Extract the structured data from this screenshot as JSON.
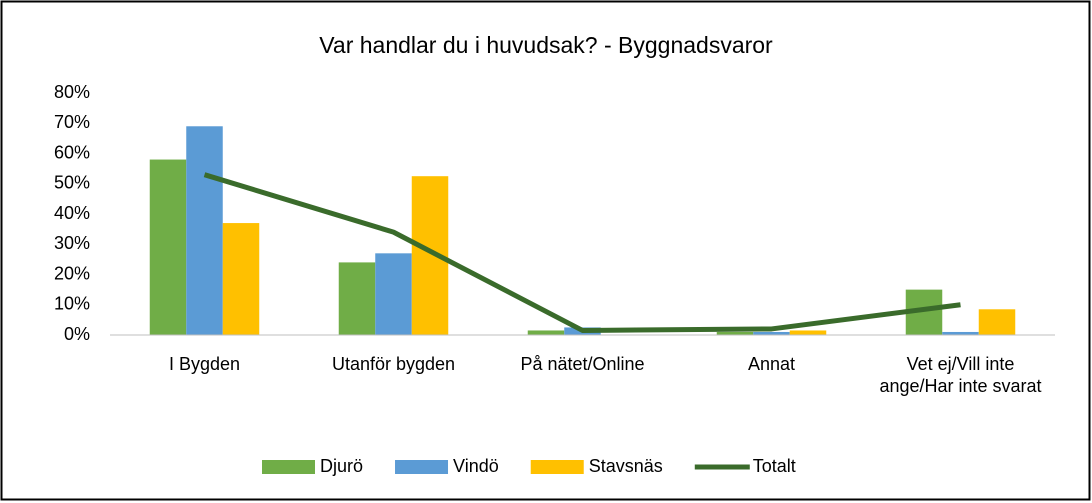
{
  "chart_data": {
    "type": "bar-line",
    "title": "Var handlar du i huvudsak? - Byggnadsvaror",
    "categories": [
      "I Bygden",
      "Utanför bygden",
      "På nätet/Online",
      "Annat",
      "Vet ej/Vill inte ange/Har inte svarat"
    ],
    "series": [
      {
        "name": "Djurö",
        "type": "bar",
        "color": "#70ad47",
        "values": [
          58,
          24,
          1.5,
          1,
          15
        ]
      },
      {
        "name": "Vindö",
        "type": "bar",
        "color": "#5b9bd5",
        "values": [
          69,
          27,
          2.5,
          1,
          1
        ]
      },
      {
        "name": "Stavsnäs",
        "type": "bar",
        "color": "#ffc000",
        "values": [
          37,
          52.5,
          0,
          1.5,
          8.5
        ]
      },
      {
        "name": "Totalt",
        "type": "line",
        "color": "#3a6b2b",
        "values": [
          53,
          34,
          1.5,
          2,
          10
        ]
      }
    ],
    "ylim": [
      0,
      80
    ],
    "yticks": [
      {
        "value": 0,
        "label": "0%"
      },
      {
        "value": 10,
        "label": "10%"
      },
      {
        "value": 20,
        "label": "20%"
      },
      {
        "value": 30,
        "label": "30%"
      },
      {
        "value": 40,
        "label": "40%"
      },
      {
        "value": 50,
        "label": "50%"
      },
      {
        "value": 60,
        "label": "60%"
      },
      {
        "value": 70,
        "label": "70%"
      },
      {
        "value": 80,
        "label": "80%"
      }
    ],
    "grid": false,
    "legend": "bottom"
  }
}
